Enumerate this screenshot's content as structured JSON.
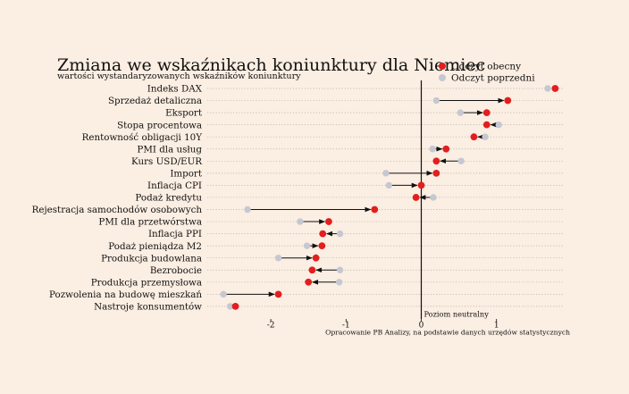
{
  "chart_data": {
    "type": "dumbbell",
    "title": "Zmiana we wskaźnikach koniunktury dla Niemiec",
    "subtitle": "wartości wystandaryzowanych wskaźników koniunktury",
    "source": "Opracowanie PB Analizy, na podstawie danych urzędów statystycznych",
    "neutral_label": "Poziom neutralny",
    "legend": {
      "current": "Odczyt obecny",
      "previous": "Odczyt poprzedni"
    },
    "colors": {
      "current": "#e31e1e",
      "previous": "#c5c8d2",
      "arrow": "#111111",
      "background": "#fbeee2",
      "grid": "#b9b0a8"
    },
    "xlim": [
      -2.8,
      1.9
    ],
    "xticks": [
      "-2",
      "-1",
      "0",
      "1"
    ],
    "categories": [
      "Indeks DAX",
      "Sprzedaż detaliczna",
      "Eksport",
      "Stopa procentowa",
      "Rentowność obligacji 10Y",
      "PMI dla usług",
      "Kurs USD/EUR",
      "Import",
      "Inflacja CPI",
      "Podaż kredytu",
      "Rejestracja samochodów osobowych",
      "PMI dla przetwórstwa",
      "Inflacja PPI",
      "Podaż pieniądza M2",
      "Produkcja budowlana",
      "Bezrobocie",
      "Produkcja przemysłowa",
      "Pozwolenia na budowę mieszkań",
      "Nastroje konsumentów"
    ],
    "series": [
      {
        "name": "Odczyt obecny",
        "values": [
          1.78,
          1.15,
          0.87,
          0.87,
          0.7,
          0.33,
          0.2,
          0.2,
          0.0,
          -0.07,
          -0.62,
          -1.23,
          -1.31,
          -1.32,
          -1.4,
          -1.45,
          -1.5,
          -1.9,
          -2.47
        ]
      },
      {
        "name": "Odczyt poprzedni",
        "values": [
          1.68,
          0.2,
          0.52,
          1.03,
          0.85,
          0.15,
          0.53,
          -0.47,
          -0.43,
          0.16,
          -2.31,
          -1.61,
          -1.08,
          -1.52,
          -1.9,
          -1.08,
          -1.09,
          -2.63,
          -2.54
        ]
      }
    ]
  }
}
